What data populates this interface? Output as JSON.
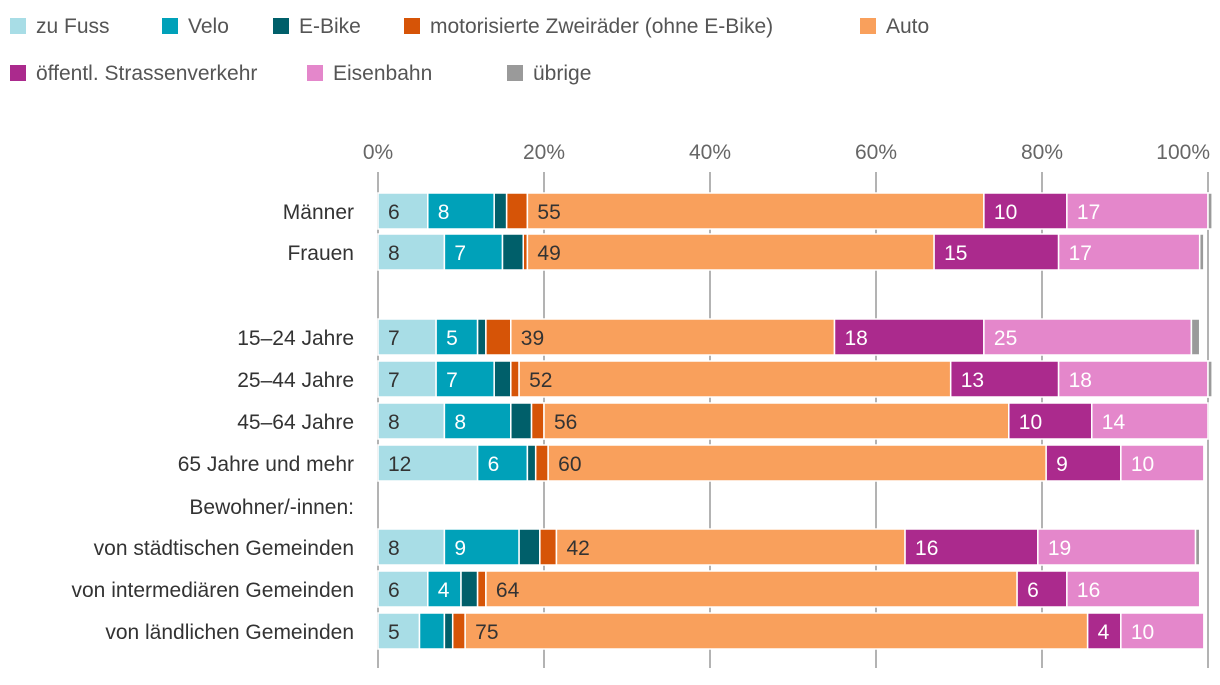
{
  "chart_data": {
    "type": "bar",
    "orientation": "horizontal",
    "stacked": true,
    "percent_scale": true,
    "xlim": [
      0,
      100
    ],
    "x_ticks": [
      "0%",
      "20%",
      "40%",
      "60%",
      "80%",
      "100%"
    ],
    "grid": true,
    "legend_position": "top-left",
    "legend": [
      {
        "name": "zu Fuss",
        "color": "#a8dde6"
      },
      {
        "name": "Velo",
        "color": "#00a1b9"
      },
      {
        "name": "E-Bike",
        "color": "#005f6a"
      },
      {
        "name": "motorisierte Zweiräder (ohne E-Bike)",
        "color": "#d65407"
      },
      {
        "name": "Auto",
        "color": "#f9a05c"
      },
      {
        "name": "öffentl. Strassenverkehr",
        "color": "#ab2a8d"
      },
      {
        "name": "Eisenbahn",
        "color": "#e487cb"
      },
      {
        "name": "übrige",
        "color": "#9a9a9a"
      }
    ],
    "rows": [
      {
        "label": "Männer",
        "values": [
          6,
          8,
          1.5,
          2.5,
          55,
          10,
          17,
          0.5
        ],
        "data_labels": [
          "6",
          "8",
          "",
          "",
          "55",
          "10",
          "17",
          ""
        ]
      },
      {
        "label": "Frauen",
        "values": [
          8,
          7,
          2.5,
          0.5,
          49,
          15,
          17,
          0.5
        ],
        "data_labels": [
          "8",
          "7",
          "",
          "",
          "49",
          "15",
          "17",
          ""
        ]
      },
      {
        "label": "15–24 Jahre",
        "values": [
          7,
          5,
          1,
          3,
          39,
          18,
          25,
          1
        ],
        "data_labels": [
          "7",
          "5",
          "",
          "",
          "39",
          "18",
          "25",
          ""
        ]
      },
      {
        "label": "25–44 Jahre",
        "values": [
          7,
          7,
          2,
          1,
          52,
          13,
          18,
          0.5
        ],
        "data_labels": [
          "7",
          "7",
          "",
          "",
          "52",
          "13",
          "18",
          ""
        ]
      },
      {
        "label": "45–64 Jahre",
        "values": [
          8,
          8,
          2.5,
          1.5,
          56,
          10,
          14,
          0
        ],
        "data_labels": [
          "8",
          "8",
          "",
          "",
          "56",
          "10",
          "14",
          ""
        ]
      },
      {
        "label": "65 Jahre und mehr",
        "values": [
          12,
          6,
          1,
          1.5,
          60,
          9,
          10,
          0
        ],
        "data_labels": [
          "12",
          "6",
          "",
          "",
          "60",
          "9",
          "10",
          ""
        ]
      },
      {
        "label": "Bewohner/-innen:",
        "values": null,
        "data_labels": []
      },
      {
        "label": "von städtischen Gemeinden",
        "values": [
          8,
          9,
          2.5,
          2,
          42,
          16,
          19,
          0.5
        ],
        "data_labels": [
          "8",
          "9",
          "",
          "",
          "42",
          "16",
          "19",
          ""
        ]
      },
      {
        "label": "von intermediären Gemeinden",
        "values": [
          6,
          4,
          2,
          1,
          64,
          6,
          16,
          0
        ],
        "data_labels": [
          "6",
          "4",
          "",
          "",
          "64",
          "6",
          "16",
          ""
        ]
      },
      {
        "label": "von ländlichen Gemeinden",
        "values": [
          5,
          3,
          1,
          1.5,
          75,
          4,
          10,
          0
        ],
        "data_labels": [
          "5",
          "",
          "",
          "",
          "75",
          "4",
          "10",
          ""
        ]
      }
    ]
  }
}
